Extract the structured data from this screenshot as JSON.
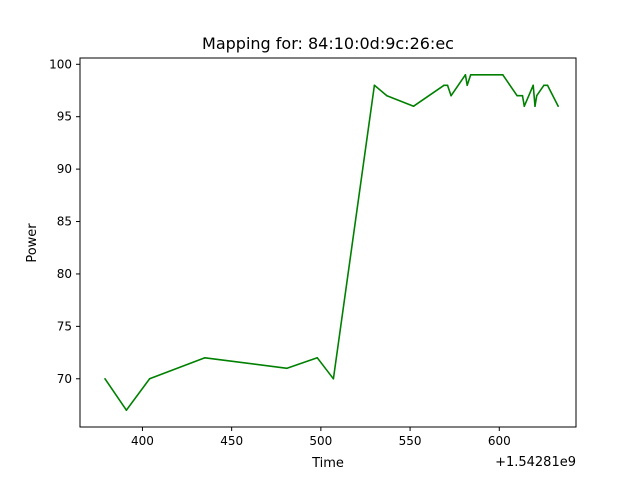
{
  "chart_data": {
    "type": "line",
    "title": "Mapping for: 84:10:0d:9c:26:ec",
    "xlabel": "Time",
    "ylabel": "Power",
    "x_offset_label": "+1.54281e9",
    "xlim": [
      365,
      643
    ],
    "ylim": [
      65.4,
      100.6
    ],
    "xticks": [
      400,
      450,
      500,
      550,
      600
    ],
    "yticks": [
      70,
      75,
      80,
      85,
      90,
      95,
      100
    ],
    "grid": false,
    "series": [
      {
        "color": "#008000",
        "x": [
          379,
          391,
          404,
          435,
          481,
          498,
          507,
          530,
          537,
          552,
          569,
          571,
          573,
          581,
          582,
          584,
          585,
          602,
          610,
          613,
          614,
          619,
          620,
          621,
          625,
          627,
          633
        ],
        "y": [
          70,
          67,
          70,
          72,
          71,
          72,
          70,
          98,
          97,
          96,
          98,
          98,
          97,
          99,
          98,
          99,
          99,
          99,
          97,
          97,
          96,
          98,
          96,
          97,
          98,
          98,
          96
        ]
      }
    ]
  }
}
